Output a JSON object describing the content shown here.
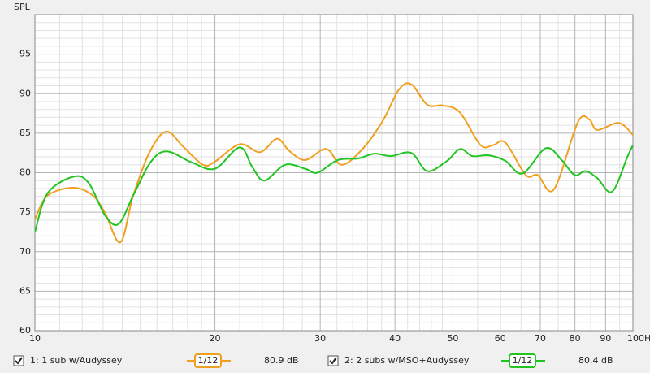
{
  "chart_data": {
    "type": "line",
    "y_label": "SPL",
    "log_x": true,
    "grid": true,
    "xlim": [
      10,
      100
    ],
    "ylim": [
      60,
      100
    ],
    "xticks": [
      10,
      20,
      30,
      40,
      50,
      60,
      70,
      80,
      90,
      {
        "value": 100,
        "label": "100Hz"
      }
    ],
    "x_minor_ticks": [
      11,
      12,
      13,
      14,
      15,
      16,
      17,
      18,
      19,
      22,
      24,
      26,
      28,
      32,
      34,
      36,
      38,
      42,
      44,
      46,
      48,
      55,
      65,
      75,
      85,
      95
    ],
    "yticks": [
      60,
      65,
      70,
      75,
      80,
      85,
      90,
      95
    ],
    "y_minor_ticks": [
      61,
      62,
      63,
      64,
      66,
      67,
      68,
      69,
      71,
      72,
      73,
      74,
      76,
      77,
      78,
      79,
      81,
      82,
      83,
      84,
      86,
      87,
      88,
      89,
      91,
      92,
      93,
      94,
      96,
      97,
      98,
      99
    ],
    "series": [
      {
        "name": "1: 1 sub w/Audyssey",
        "color": "#f0a020",
        "smoothing": "1/12",
        "level": "80.9 dB",
        "x": [
          10,
          10.5,
          11.6,
          12.5,
          13.1,
          13.9,
          14.6,
          15.6,
          16.6,
          17.7,
          19.1,
          20.0,
          22.0,
          23.8,
          25.4,
          26.6,
          28.3,
          30.7,
          32.6,
          35.3,
          38.2,
          40.6,
          42.6,
          45.3,
          48.2,
          51.4,
          55.6,
          58.4,
          61.2,
          66.2,
          69.3,
          73.8,
          80.9,
          84.6,
          87.2,
          94.7,
          100
        ],
        "values": [
          74.1,
          77.1,
          78.1,
          77.1,
          74.9,
          71.2,
          77.1,
          82.8,
          85.2,
          83.3,
          81.0,
          81.4,
          83.6,
          82.6,
          84.3,
          82.8,
          81.6,
          83.0,
          81.0,
          83.0,
          86.6,
          90.5,
          91.2,
          88.6,
          88.5,
          87.6,
          83.5,
          83.5,
          83.8,
          79.7,
          79.7,
          77.9,
          86.4,
          86.7,
          85.4,
          86.3,
          84.8
        ]
      },
      {
        "name": "2: 2 subs w/MSO+Audyssey",
        "color": "#22c422",
        "smoothing": "1/12",
        "level": "80.4 dB",
        "x": [
          10,
          10.5,
          11.6,
          12.3,
          13.1,
          13.8,
          14.6,
          15.6,
          16.6,
          18.3,
          20.0,
          22.0,
          23.1,
          24.2,
          26.2,
          28.3,
          29.7,
          32.1,
          34.7,
          37.0,
          39.4,
          42.6,
          45.3,
          48.9,
          51.4,
          53.9,
          57.4,
          61.2,
          65.4,
          71.5,
          76.0,
          79.9,
          83.3,
          87.2,
          92.3,
          97.9,
          100
        ],
        "values": [
          72.5,
          77.4,
          79.5,
          78.7,
          74.6,
          73.5,
          77.1,
          81.3,
          82.7,
          81.3,
          80.5,
          83.2,
          80.7,
          79.0,
          81.0,
          80.5,
          80.0,
          81.6,
          81.8,
          82.4,
          82.1,
          82.5,
          80.2,
          81.5,
          83.0,
          82.1,
          82.2,
          81.5,
          79.9,
          83.1,
          81.6,
          79.7,
          80.2,
          79.3,
          77.6,
          82.0,
          83.5
        ]
      }
    ]
  }
}
